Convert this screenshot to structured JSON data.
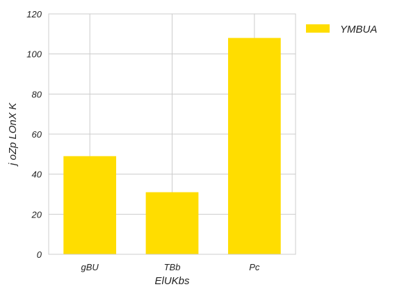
{
  "chart_data": {
    "type": "bar",
    "categories": [
      "gBU",
      "TBb",
      "Pc"
    ],
    "series": [
      {
        "name": "YMBUA",
        "values": [
          49,
          31,
          108
        ],
        "color": "#FFDD00"
      }
    ],
    "xlabel": "ElUKbs",
    "ylabel": "j oZp  LOnX K",
    "ylim": [
      0,
      120
    ],
    "yticks": [
      0,
      20,
      40,
      60,
      80,
      100,
      120
    ],
    "grid": true,
    "grid_color": "#CCCCCC",
    "legend_position": "outside-top-right"
  }
}
